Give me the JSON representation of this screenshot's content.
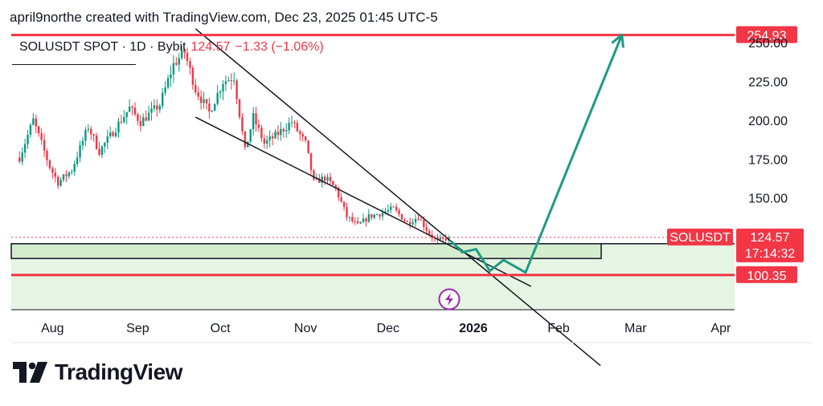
{
  "header": {
    "attribution": "april9northe created with TradingView.com, Dec 23, 2025 01:45 UTC-5"
  },
  "legend": {
    "symbol": "SOLUSDT SPOT · 1D · Bybit",
    "price": "124.57",
    "change": "−1.33 (−1.06%)"
  },
  "brand": {
    "name": "TradingView"
  },
  "colors": {
    "up": "#089981",
    "down": "#f23645",
    "projection": "#1f9a83",
    "zone_fill": "#d4edcf",
    "zone_fill_light": "#e6f4e3",
    "level_line": "#f23645",
    "event_icon": "#9c27b0"
  },
  "chart_data": {
    "type": "candlestick",
    "title": "SOLUSDT SPOT · 1D · Bybit",
    "xlabel": "",
    "ylabel": "",
    "ylim": [
      78,
      262
    ],
    "x_ticks": [
      "Aug",
      "Sep",
      "Oct",
      "Nov",
      "Dec",
      "2026",
      "Feb",
      "Mar",
      "Apr"
    ],
    "y_ticks": [
      "150.00",
      "175.00",
      "200.00",
      "225.00",
      "250.00"
    ],
    "levels": [
      {
        "name": "resistance",
        "value": 254.93,
        "label": "254.93"
      },
      {
        "name": "support",
        "value": 100.35,
        "label": "100.35"
      }
    ],
    "current_price": {
      "symbol": "SOLUSDT",
      "value": 124.57,
      "label": "124.57",
      "countdown": "17:14:32"
    },
    "demand_zone": {
      "top": 120.5,
      "bottom": 111
    },
    "lower_zone": {
      "top": 120.5,
      "bottom": 78
    },
    "channel": {
      "upper": [
        {
          "date": "2025-09-22",
          "value": 259
        },
        {
          "date": "2025-12-26",
          "value": 119
        }
      ],
      "lower": [
        {
          "date": "2025-09-22",
          "value": 202
        },
        {
          "date": "2026-01-22",
          "value": 93
        }
      ]
    },
    "projection_path": [
      {
        "date": "2025-12-24",
        "value": 122
      },
      {
        "date": "2025-12-28",
        "value": 115
      },
      {
        "date": "2026-01-02",
        "value": 117
      },
      {
        "date": "2026-01-07",
        "value": 103
      },
      {
        "date": "2026-01-12",
        "value": 110
      },
      {
        "date": "2026-01-20",
        "value": 102
      },
      {
        "date": "2026-02-24",
        "value": 255
      }
    ],
    "series_anchors": [
      {
        "date": "2025-07-20",
        "value": 176
      },
      {
        "date": "2025-07-25",
        "value": 200
      },
      {
        "date": "2025-07-31",
        "value": 170
      },
      {
        "date": "2025-08-03",
        "value": 160
      },
      {
        "date": "2025-08-08",
        "value": 168
      },
      {
        "date": "2025-08-14",
        "value": 196
      },
      {
        "date": "2025-08-18",
        "value": 180
      },
      {
        "date": "2025-08-22",
        "value": 190
      },
      {
        "date": "2025-08-29",
        "value": 208
      },
      {
        "date": "2025-09-02",
        "value": 199
      },
      {
        "date": "2025-09-09",
        "value": 210
      },
      {
        "date": "2025-09-14",
        "value": 236
      },
      {
        "date": "2025-09-18",
        "value": 244
      },
      {
        "date": "2025-09-22",
        "value": 220
      },
      {
        "date": "2025-09-27",
        "value": 205
      },
      {
        "date": "2025-10-02",
        "value": 225
      },
      {
        "date": "2025-10-06",
        "value": 228
      },
      {
        "date": "2025-10-10",
        "value": 180
      },
      {
        "date": "2025-10-13",
        "value": 202
      },
      {
        "date": "2025-10-17",
        "value": 185
      },
      {
        "date": "2025-10-21",
        "value": 190
      },
      {
        "date": "2025-10-27",
        "value": 199
      },
      {
        "date": "2025-11-01",
        "value": 185
      },
      {
        "date": "2025-11-04",
        "value": 160
      },
      {
        "date": "2025-11-08",
        "value": 163
      },
      {
        "date": "2025-11-12",
        "value": 156
      },
      {
        "date": "2025-11-16",
        "value": 138
      },
      {
        "date": "2025-11-20",
        "value": 132
      },
      {
        "date": "2025-11-24",
        "value": 138
      },
      {
        "date": "2025-11-28",
        "value": 140
      },
      {
        "date": "2025-12-03",
        "value": 143
      },
      {
        "date": "2025-12-08",
        "value": 134
      },
      {
        "date": "2025-12-12",
        "value": 138
      },
      {
        "date": "2025-12-16",
        "value": 127
      },
      {
        "date": "2025-12-19",
        "value": 122
      },
      {
        "date": "2025-12-23",
        "value": 124.57
      }
    ]
  }
}
